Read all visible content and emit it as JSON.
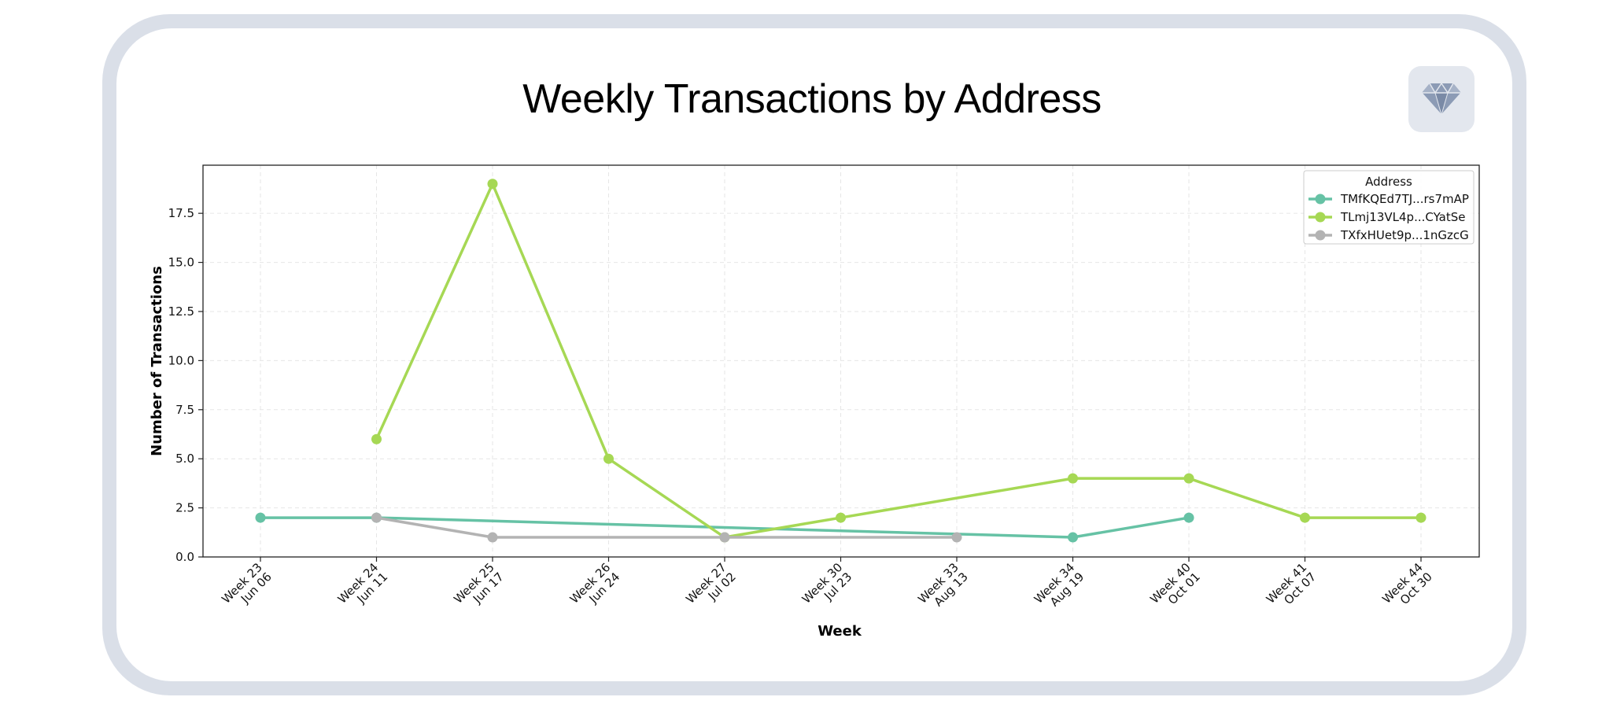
{
  "header": {
    "title": "Weekly Transactions by Address",
    "badge_icon": "diamond-icon"
  },
  "chart_data": {
    "type": "line",
    "title": "Weekly Transactions by Address",
    "xlabel": "Week",
    "ylabel": "Number of Transactions",
    "categories": [
      [
        "Week 23",
        "Jun 06"
      ],
      [
        "Week 24",
        "Jun 11"
      ],
      [
        "Week 25",
        "Jun 17"
      ],
      [
        "Week 26",
        "Jun 24"
      ],
      [
        "Week 27",
        "Jul 02"
      ],
      [
        "Week 30",
        "Jul 23"
      ],
      [
        "Week 33",
        "Aug 13"
      ],
      [
        "Week 34",
        "Aug 19"
      ],
      [
        "Week 40",
        "Oct 01"
      ],
      [
        "Week 41",
        "Oct 07"
      ],
      [
        "Week 44",
        "Oct 30"
      ]
    ],
    "ylim": [
      0,
      19.95
    ],
    "yticks": [
      0,
      2.5,
      5,
      7.5,
      10,
      12.5,
      15,
      17.5
    ],
    "grid": true,
    "legend": {
      "title": "Address",
      "position": "top-right"
    },
    "series": [
      {
        "name": "TMfKQEd7TJ...rs7mAP",
        "color": "#66c2a5",
        "points": [
          [
            0,
            2
          ],
          [
            1,
            2
          ],
          [
            7,
            1
          ],
          [
            8,
            2
          ]
        ]
      },
      {
        "name": "TLmj13VL4p...CYatSe",
        "color": "#a6d854",
        "points": [
          [
            1,
            6
          ],
          [
            2,
            19
          ],
          [
            3,
            5
          ],
          [
            4,
            1
          ],
          [
            5,
            2
          ],
          [
            7,
            4
          ],
          [
            8,
            4
          ],
          [
            9,
            2
          ],
          [
            10,
            2
          ]
        ]
      },
      {
        "name": "TXfxHUet9p...1nGzcG",
        "color": "#b3b3b3",
        "points": [
          [
            1,
            2
          ],
          [
            2,
            1
          ],
          [
            4,
            1
          ],
          [
            6,
            1
          ]
        ]
      }
    ]
  }
}
